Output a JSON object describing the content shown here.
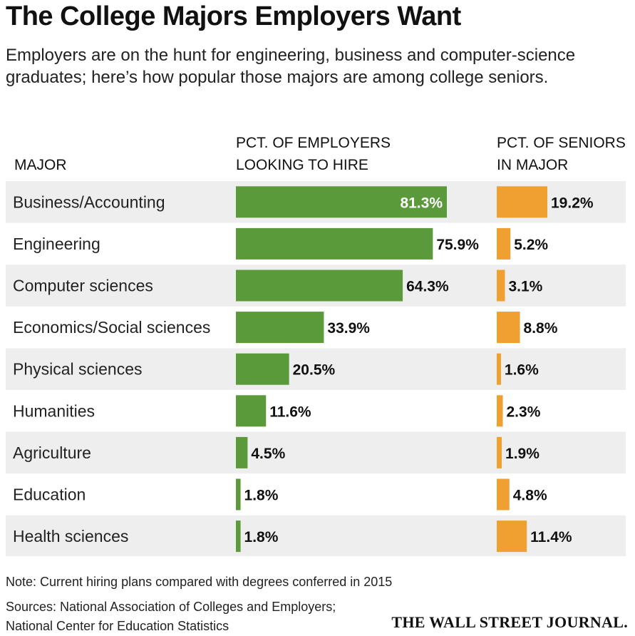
{
  "title": "The College Majors Employers Want",
  "subtitle": "Employers are on the hunt for engineering, business and computer-science graduates; here’s how popular those majors are among college seniors.",
  "headers": {
    "major": "MAJOR",
    "employers_line1": "PCT. OF EMPLOYERS",
    "employers_line2": "LOOKING TO HIRE",
    "seniors_line1": "PCT. OF SENIORS",
    "seniors_line2": "IN MAJOR"
  },
  "note": "Note: Current hiring plans compared with degrees conferred in 2015",
  "sources_line1": "Sources: National Association of Colleges and Employers;",
  "sources_line2": "National Center for Education Statistics",
  "logo": "THE WALL STREET JOURNAL.",
  "colors": {
    "employers": "#5a9a3a",
    "seniors": "#f0a030",
    "row_stripe": "#eeeeee"
  },
  "chart_data": {
    "type": "bar",
    "categories": [
      "Business/Accounting",
      "Engineering",
      "Computer sciences",
      "Economics/Social sciences",
      "Physical sciences",
      "Humanities",
      "Agriculture",
      "Education",
      "Health sciences"
    ],
    "series": [
      {
        "name": "PCT. OF EMPLOYERS LOOKING TO HIRE",
        "values": [
          81.3,
          75.9,
          64.3,
          33.9,
          20.5,
          11.6,
          4.5,
          1.8,
          1.8
        ],
        "labels": [
          "81.3%",
          "75.9%",
          "64.3%",
          "33.9%",
          "20.5%",
          "11.6%",
          "4.5%",
          "1.8%",
          "1.8%"
        ]
      },
      {
        "name": "PCT. OF SENIORS IN MAJOR",
        "values": [
          19.2,
          5.2,
          3.1,
          8.8,
          1.6,
          2.3,
          1.9,
          4.8,
          11.4
        ],
        "labels": [
          "19.2%",
          "5.2%",
          "3.1%",
          "8.8%",
          "1.6%",
          "2.3%",
          "1.9%",
          "4.8%",
          "11.4%"
        ]
      }
    ],
    "unit": "%"
  }
}
